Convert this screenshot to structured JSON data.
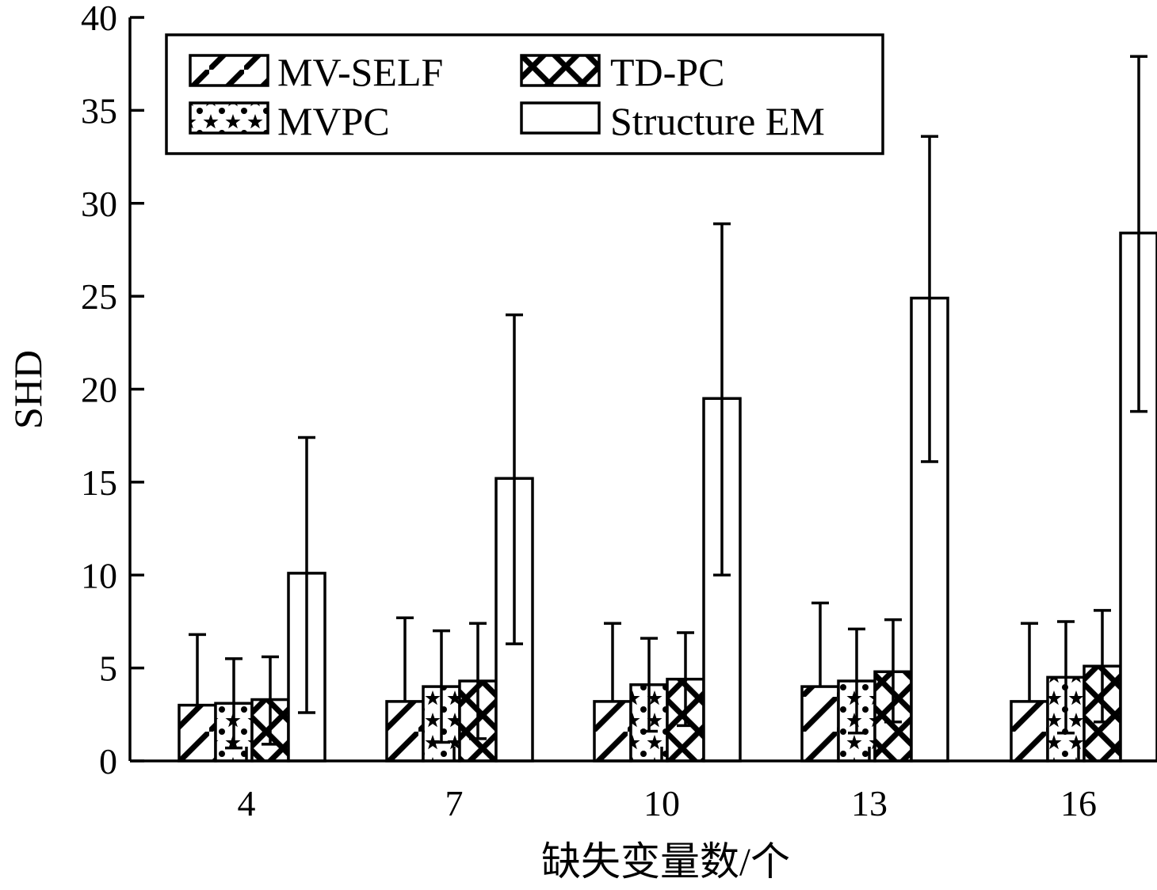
{
  "chart_data": {
    "type": "bar",
    "xlabel": "缺失变量数/个",
    "ylabel": "SHD",
    "ylim": [
      0,
      40
    ],
    "yticks": [
      "0",
      "5",
      "10",
      "15",
      "20",
      "25",
      "30",
      "35",
      "40"
    ],
    "categories": [
      "4",
      "7",
      "10",
      "13",
      "16"
    ],
    "legend_position": "top-left",
    "error_bars": "one-sided (upward); lower whisker shown where it exceeds bar height",
    "series": [
      {
        "name": "MV-SELF",
        "pattern": "diagonal-hatch",
        "values": [
          3.0,
          3.2,
          3.2,
          4.0,
          3.2
        ],
        "err_high": [
          6.8,
          7.7,
          7.4,
          8.5,
          7.4
        ],
        "err_low": [
          null,
          null,
          null,
          null,
          null
        ]
      },
      {
        "name": "MVPC",
        "pattern": "stars",
        "values": [
          3.1,
          4.0,
          4.1,
          4.3,
          4.5
        ],
        "err_high": [
          5.5,
          7.0,
          6.6,
          7.1,
          7.5
        ],
        "err_low": [
          0.7,
          1.0,
          1.6,
          1.5,
          1.5
        ]
      },
      {
        "name": "TD-PC",
        "pattern": "crosshatch",
        "values": [
          3.3,
          4.3,
          4.4,
          4.8,
          5.1
        ],
        "err_high": [
          5.6,
          7.4,
          6.9,
          7.6,
          8.1
        ],
        "err_low": [
          0.9,
          1.2,
          1.9,
          2.1,
          2.1
        ]
      },
      {
        "name": "Structure EM",
        "pattern": "empty",
        "values": [
          10.1,
          15.2,
          19.5,
          24.9,
          28.4
        ],
        "err_high": [
          17.4,
          24.0,
          28.9,
          33.6,
          37.9
        ],
        "err_low": [
          2.6,
          6.3,
          10.0,
          16.1,
          18.8
        ]
      }
    ]
  }
}
